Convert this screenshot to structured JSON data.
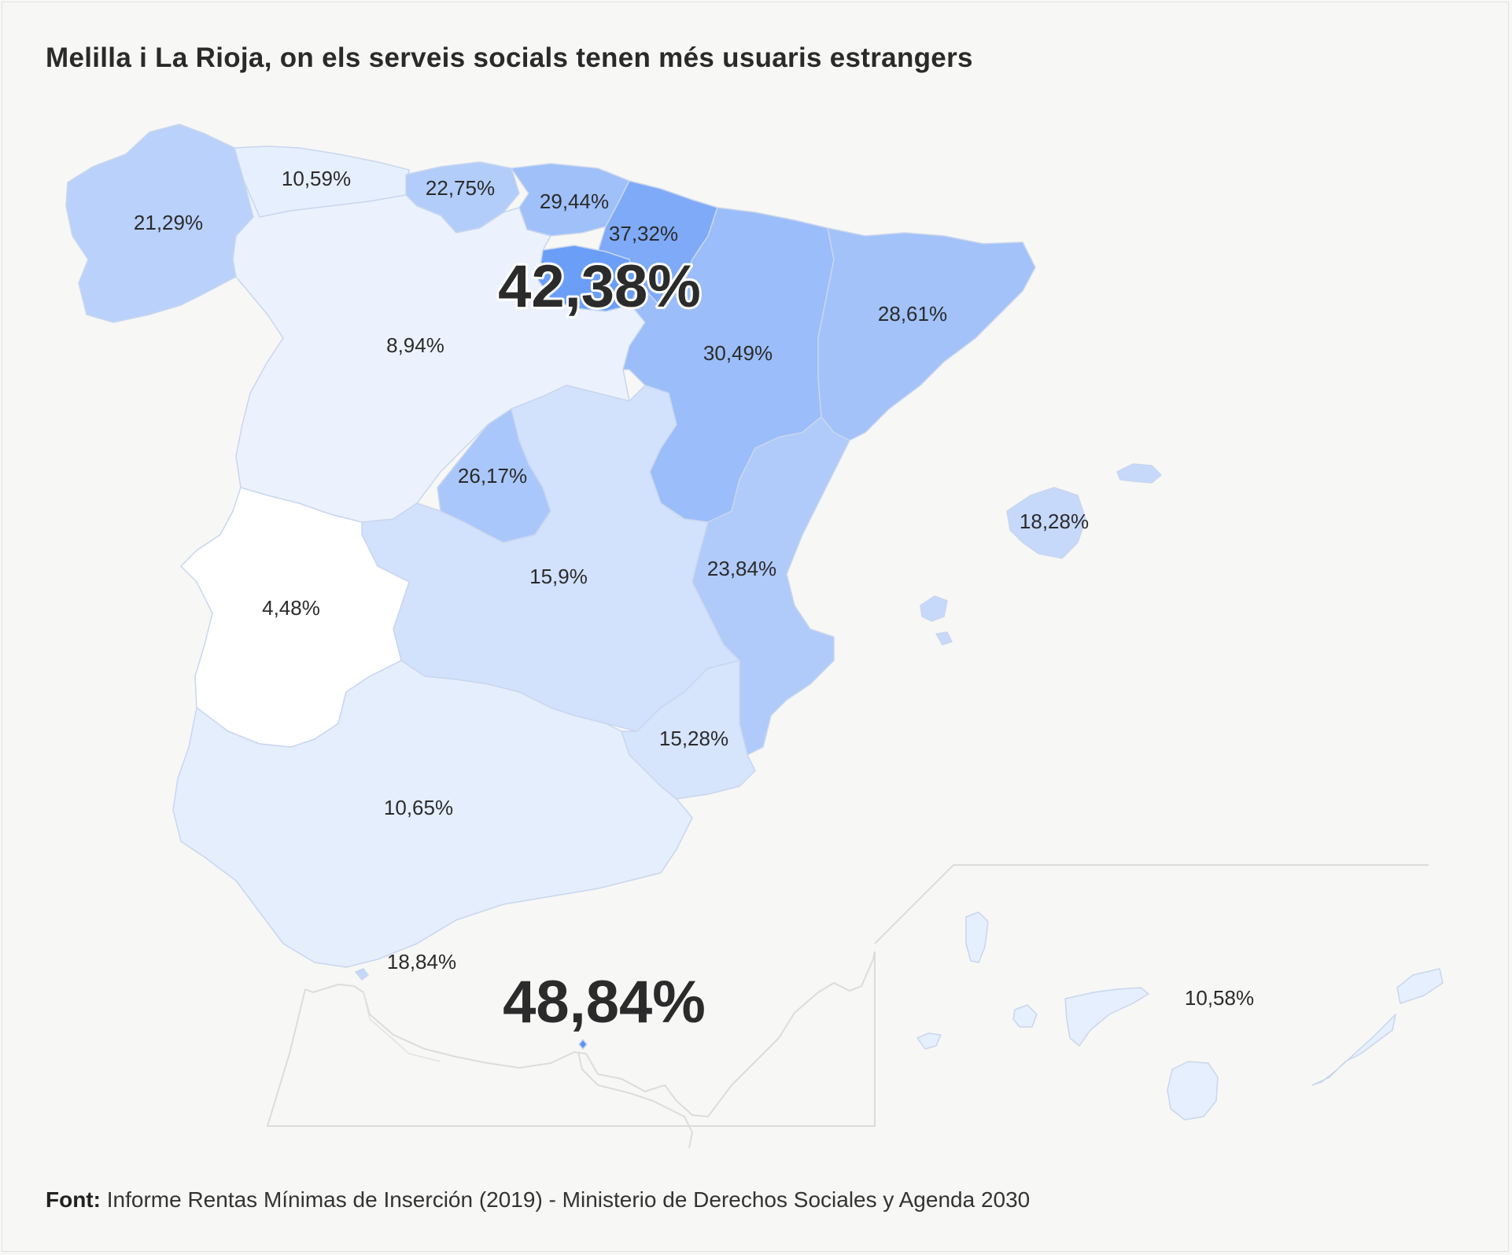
{
  "title": "Melilla i La Rioja, on els serveis socials tenen més usuaris estrangers",
  "source": {
    "label": "Font:",
    "text": "Informe Rentas Mínimas de Inserción (2019) - Ministerio de Derechos Sociales y Agenda 2030"
  },
  "regions": [
    {
      "id": "galicia",
      "label": "21,29%",
      "value": 21.29,
      "color": "#b9d1fb"
    },
    {
      "id": "asturias",
      "label": "10,59%",
      "value": 10.59,
      "color": "#e6effd"
    },
    {
      "id": "cantabria",
      "label": "22,75%",
      "value": 22.75,
      "color": "#b3cdfa"
    },
    {
      "id": "pais-vasco",
      "label": "29,44%",
      "value": 29.44,
      "color": "#9fc0f9"
    },
    {
      "id": "navarra",
      "label": "37,32%",
      "value": 37.32,
      "color": "#7faaf8"
    },
    {
      "id": "la-rioja",
      "label": "42,38%",
      "value": 42.38,
      "color": "#6a9ef7"
    },
    {
      "id": "castilla-leon",
      "label": "8,94%",
      "value": 8.94,
      "color": "#ecf2fd"
    },
    {
      "id": "aragon",
      "label": "30,49%",
      "value": 30.49,
      "color": "#9bbdf9"
    },
    {
      "id": "catalunya",
      "label": "28,61%",
      "value": 28.61,
      "color": "#a2c2f9"
    },
    {
      "id": "madrid",
      "label": "26,17%",
      "value": 26.17,
      "color": "#a9c7fa"
    },
    {
      "id": "castilla-la-mancha",
      "label": "15,9%",
      "value": 15.9,
      "color": "#d2e1fc"
    },
    {
      "id": "valencia",
      "label": "23,84%",
      "value": 23.84,
      "color": "#b0cbfa"
    },
    {
      "id": "extremadura",
      "label": "4,48%",
      "value": 4.48,
      "color": "#ffffff"
    },
    {
      "id": "murcia",
      "label": "15,28%",
      "value": 15.28,
      "color": "#d6e4fc"
    },
    {
      "id": "andalucia",
      "label": "10,65%",
      "value": 10.65,
      "color": "#e5eefd"
    },
    {
      "id": "illes-balears",
      "label": "18,28%",
      "value": 18.28,
      "color": "#c6d9fb"
    },
    {
      "id": "ceuta",
      "label": "18,84%",
      "value": 18.84,
      "color": "#c4d8fb"
    },
    {
      "id": "melilla",
      "label": "48,84%",
      "value": 48.84,
      "color": "#5b93f5"
    },
    {
      "id": "canarias",
      "label": "10,58%",
      "value": 10.58,
      "color": "#e6effd"
    }
  ]
}
